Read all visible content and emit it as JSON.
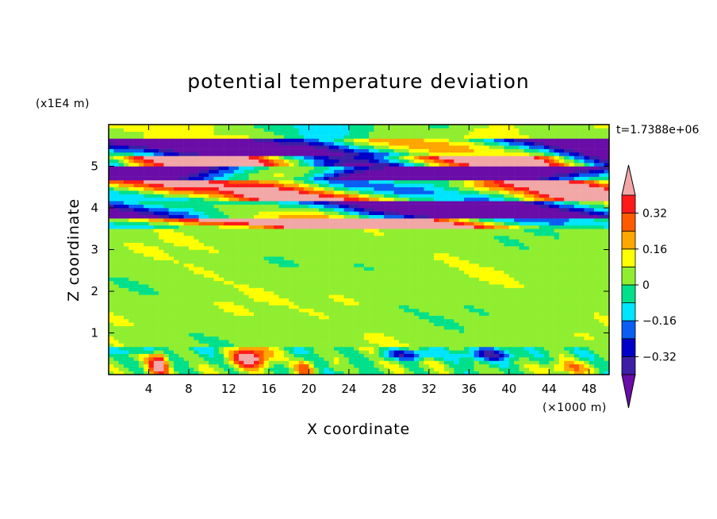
{
  "chart_data": {
    "type": "heatmap",
    "title": "potential temperature deviation",
    "xlabel": "X coordinate",
    "ylabel": "Z coordinate",
    "x_unit": "(×1000 m)",
    "y_unit": "(x1E4 m)",
    "time_label": "t=1.7388e+06",
    "xlim": [
      0,
      50
    ],
    "ylim": [
      0,
      6
    ],
    "x_ticks": [
      4,
      8,
      12,
      16,
      20,
      24,
      28,
      32,
      36,
      40,
      44,
      48
    ],
    "x_tick_labels": [
      "4",
      "8",
      "12",
      "16",
      "20",
      "24",
      "28",
      "32",
      "36",
      "40",
      "44",
      "48"
    ],
    "y_ticks": [
      1,
      2,
      3,
      4,
      5
    ],
    "y_tick_labels": [
      "1",
      "2",
      "3",
      "4",
      "5"
    ],
    "colorbar": {
      "levels": [
        -0.4,
        -0.32,
        -0.24,
        -0.16,
        -0.08,
        0,
        0.08,
        0.16,
        0.24,
        0.32,
        0.4
      ],
      "tick_values": [
        -0.32,
        -0.16,
        0,
        0.16,
        0.32
      ],
      "tick_labels": [
        "−0.32",
        "−0.16",
        "0",
        "0.16",
        "0.32"
      ],
      "colors": [
        "#6a0ca8",
        "#3c1fa5",
        "#0000c8",
        "#0a5ef2",
        "#00e5ff",
        "#00e08a",
        "#90ee30",
        "#ffff00",
        "#ffa600",
        "#ff5a00",
        "#ff1a1a",
        "#f2a7a7"
      ],
      "extend_low_color": "#6a0ca8",
      "extend_high_color": "#f2a7a7"
    },
    "grid": false
  }
}
